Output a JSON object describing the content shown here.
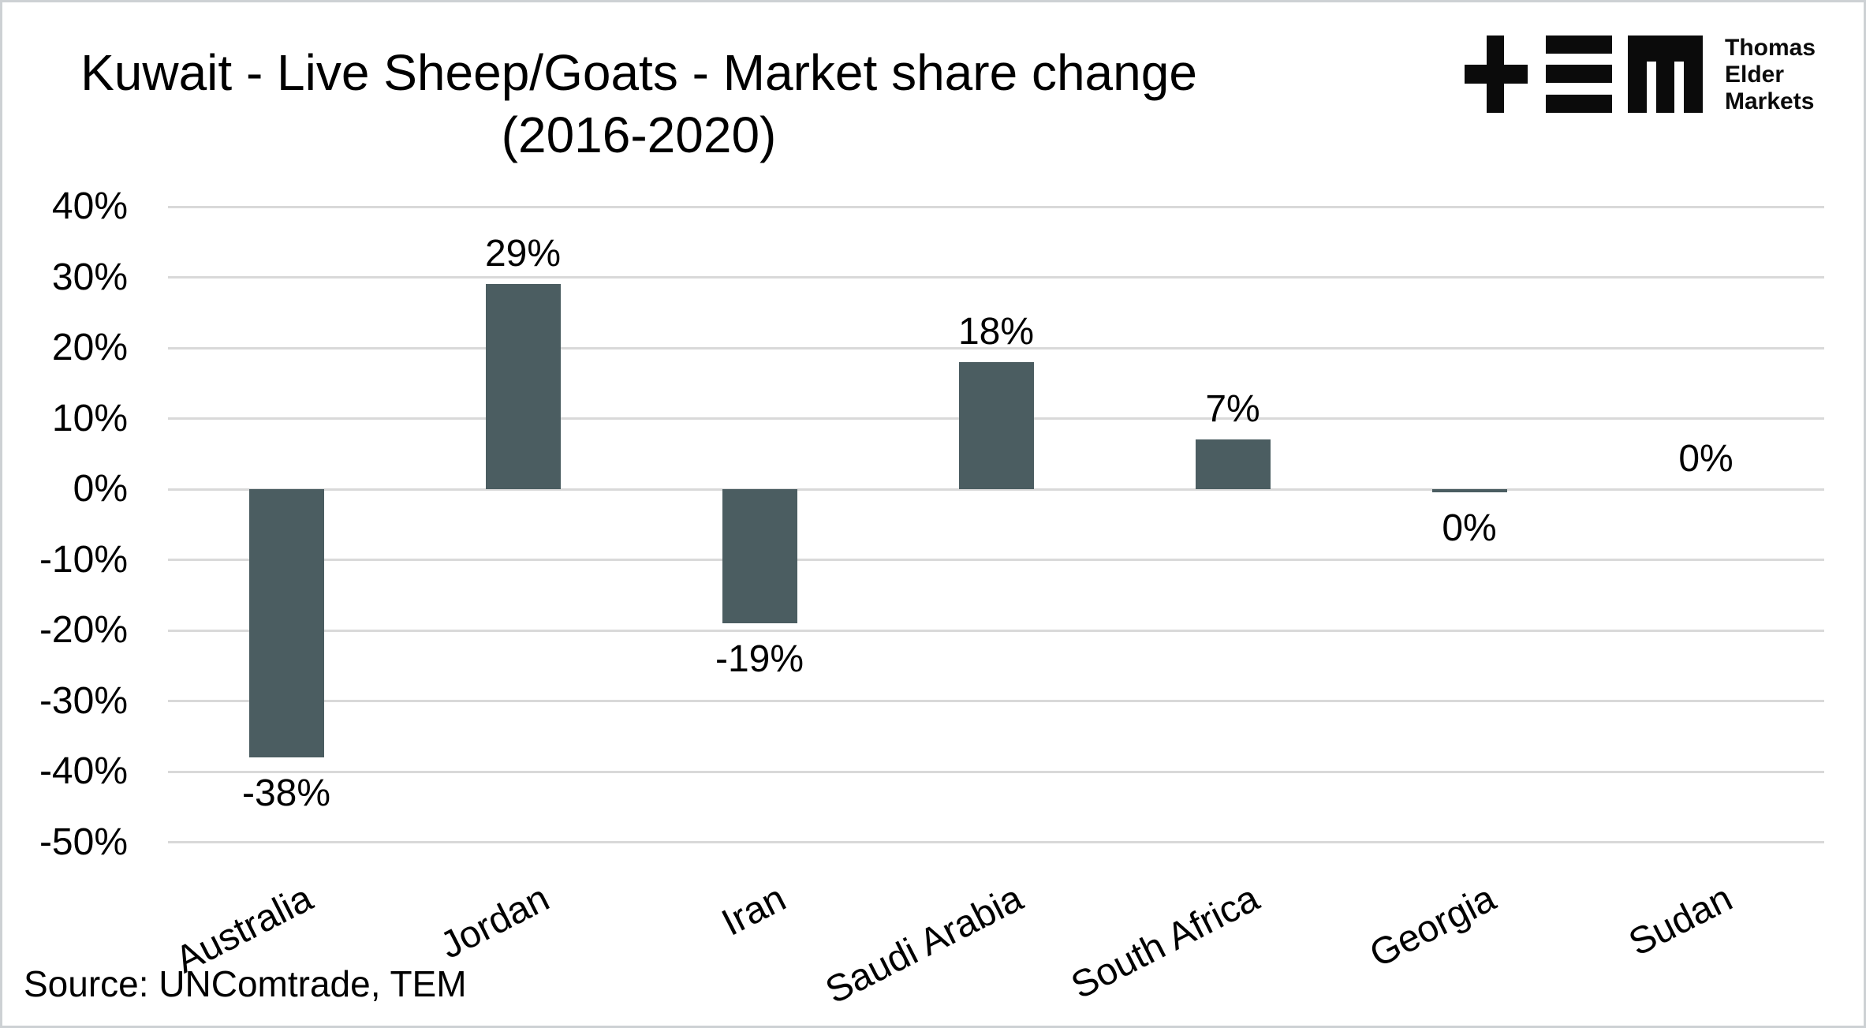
{
  "header": {
    "title_line1": "Kuwait - Live Sheep/Goats - Market share change",
    "title_line2": "(2016-2020)"
  },
  "logo": {
    "lines": [
      "Thomas",
      "Elder",
      "Markets"
    ],
    "color": "#0b0b0b"
  },
  "footer": {
    "source": "Source: UNComtrade, TEM"
  },
  "chart_data": {
    "type": "bar",
    "title": "Kuwait - Live Sheep/Goats - Market share change (2016-2020)",
    "categories": [
      "Australia",
      "Jordan",
      "Iran",
      "Saudi Arabia",
      "South Africa",
      "Georgia",
      "Sudan"
    ],
    "values": [
      -38,
      29,
      -19,
      18,
      7,
      -0.4,
      0
    ],
    "value_labels": [
      "-38%",
      "29%",
      "-19%",
      "18%",
      "7%",
      "0%",
      "0%"
    ],
    "xlabel": "",
    "ylabel": "",
    "ylim": [
      -50,
      40
    ],
    "ytick_step": 10,
    "yticks": [
      {
        "value": 40,
        "label": "40%"
      },
      {
        "value": 30,
        "label": "30%"
      },
      {
        "value": 20,
        "label": "20%"
      },
      {
        "value": 10,
        "label": "10%"
      },
      {
        "value": 0,
        "label": "0%"
      },
      {
        "value": -10,
        "label": "-10%"
      },
      {
        "value": -20,
        "label": "-20%"
      },
      {
        "value": -30,
        "label": "-30%"
      },
      {
        "value": -40,
        "label": "-40%"
      },
      {
        "value": -50,
        "label": "-50%"
      }
    ],
    "grid": true,
    "legend": "none",
    "colors": {
      "bar": "#4b5d61",
      "gridline": "#d9d9d9",
      "text": "#000000"
    }
  }
}
